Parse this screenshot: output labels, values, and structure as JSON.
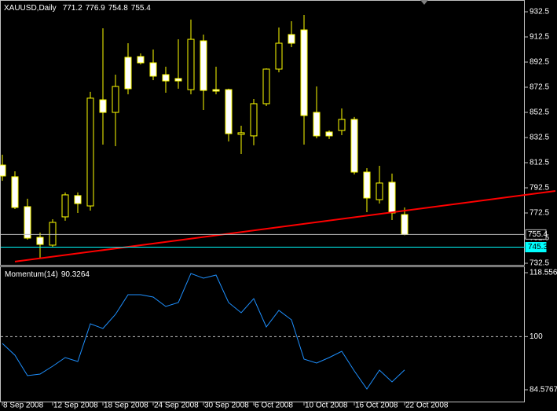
{
  "chart_data": [
    {
      "type": "candlestick",
      "title": "XAUUSD,Daily",
      "categories": [
        "8 Sep 2008",
        null,
        null,
        null,
        "12 Sep 2008",
        null,
        null,
        null,
        "18 Sep 2008",
        null,
        null,
        null,
        "24 Sep 2008",
        null,
        null,
        null,
        "30 Sep 2008",
        null,
        null,
        null,
        "6 Oct 2008",
        null,
        null,
        null,
        "10 Oct 2008",
        null,
        null,
        null,
        "16 Oct 2008",
        null,
        null,
        null,
        "22 Oct 2008"
      ],
      "open": [
        810.6,
        801.3,
        777.5,
        753.1,
        746.9,
        769.4,
        786.3,
        778.1,
        862.5,
        852.5,
        896.3,
        896.9,
        891.9,
        882.5,
        879.4,
        870.6,
        909.4,
        870.6,
        870.6,
        835.0,
        833.8,
        859.4,
        886.9,
        914.4,
        918.1,
        852.5,
        836.9,
        838.1,
        846.9,
        805.0,
        783.1,
        796.9,
        771.2
      ],
      "high": [
        818.8,
        805.6,
        783.8,
        756.9,
        767.5,
        788.8,
        788.8,
        868.8,
        919.4,
        882.5,
        907.5,
        899.4,
        902.5,
        888.8,
        910.6,
        926.3,
        914.4,
        888.8,
        871.3,
        841.9,
        863.1,
        887.5,
        920.0,
        925.0,
        930.0,
        873.1,
        838.1,
        855.6,
        848.8,
        808.1,
        810.0,
        803.8,
        776.9
      ],
      "low": [
        798.1,
        775.6,
        751.3,
        736.9,
        745.6,
        766.3,
        772.5,
        774.4,
        826.9,
        825.6,
        866.9,
        890.6,
        878.1,
        868.1,
        871.3,
        866.9,
        854.4,
        866.9,
        829.4,
        819.4,
        826.3,
        857.5,
        884.4,
        904.4,
        826.9,
        831.9,
        831.3,
        834.4,
        803.1,
        773.1,
        780.0,
        766.9,
        754.8
      ],
      "close": [
        801.9,
        776.9,
        752.5,
        747.5,
        765.0,
        786.9,
        780.0,
        863.8,
        852.5,
        873.1,
        871.3,
        891.9,
        881.3,
        877.5,
        877.5,
        910.6,
        870.0,
        869.4,
        835.6,
        836.3,
        859.4,
        886.9,
        907.5,
        907.5,
        850.0,
        833.8,
        833.8,
        846.9,
        805.0,
        784.4,
        796.3,
        772.5,
        755.4
      ],
      "up_color": "#000000",
      "down_color": "#ffffff",
      "outline_color": "#ffff00",
      "ylim": [
        731.25,
        941.25
      ],
      "yticks": [
        932.5,
        912.5,
        892.5,
        872.5,
        852.5,
        832.5,
        812.5,
        792.5,
        772.5,
        752.5,
        732.5
      ],
      "hlines": [
        {
          "value": 755.4,
          "color": "#c0c0c0"
        },
        {
          "value": 745.3,
          "color": "#00ffff"
        }
      ],
      "trendline": {
        "color": "#ff0000",
        "from": {
          "x": 1,
          "y": 733.8
        },
        "to": {
          "x": 44,
          "y": 790.0
        }
      }
    },
    {
      "type": "line",
      "title": "Momentum(14)",
      "color": "#1e90ff",
      "values": [
        98.03,
        94.61,
        88.68,
        89.14,
        91.42,
        93.93,
        92.79,
        103.73,
        102.37,
        106.47,
        112.17,
        112.17,
        111.49,
        108.75,
        109.89,
        118.33,
        116.96,
        117.87,
        109.89,
        106.93,
        111.03,
        102.82,
        107.61,
        104.87,
        93.47,
        92.33,
        93.93,
        95.75,
        90.05,
        84.81,
        90.28,
        86.86,
        90.3264
      ],
      "ylim": [
        80.93,
        120.15
      ],
      "yticks": [
        118.5565,
        100,
        84.5767
      ],
      "reference_lines": [
        {
          "value": 100,
          "dashed": true
        }
      ]
    }
  ]
}
